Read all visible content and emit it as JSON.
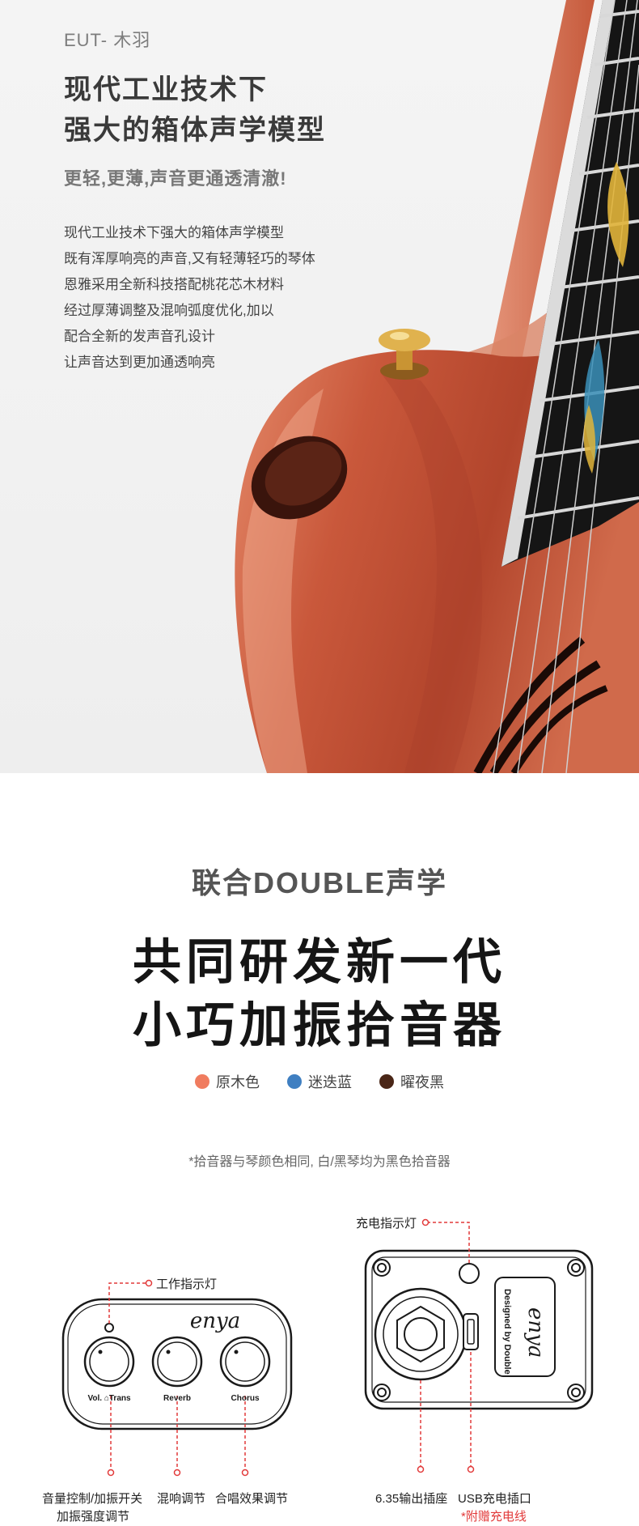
{
  "hero": {
    "model": "EUT- 木羽",
    "headline": [
      "现代工业技术下",
      "强大的箱体声学模型"
    ],
    "subtitle": "更轻,更薄,声音更通透清澈!",
    "body": [
      "现代工业技术下强大的箱体声学模型",
      "既有浑厚响亮的声音,又有轻薄轻巧的琴体",
      "恩雅采用全新科技搭配桃花芯木材料",
      "经过厚薄调整及混响弧度优化,加以",
      "配合全新的发声音孔设计",
      "让声音达到更加通透响亮"
    ]
  },
  "double": {
    "title": "联合DOUBLE声学",
    "big_title": [
      "共同研发新一代",
      "小巧加振拾音器"
    ],
    "colors": [
      {
        "name": "原木色",
        "color": "#f07c5f"
      },
      {
        "name": "迷迭蓝",
        "color": "#3f7fc1"
      },
      {
        "name": "曜夜黑",
        "color": "#4a2617"
      }
    ],
    "note": "*拾音器与琴颜色相同, 白/黑琴均为黑色拾音器"
  },
  "left_panel": {
    "indicator_label": "工作指示灯",
    "logo": "enya",
    "knobs": [
      "Vol. ⌂Trans",
      "Reverb",
      "Chorus"
    ],
    "captions": {
      "vol_line1": "音量控制/加振开关",
      "vol_line2": "加振强度调节",
      "reverb": "混响调节",
      "chorus": "合唱效果调节"
    }
  },
  "right_panel": {
    "charge_label": "充电指示灯",
    "designed": "Designed by Double",
    "logo": "enya",
    "captions": {
      "output": "6.35输出插座",
      "usb": "USB充电插口",
      "gift": "*附赠充电线"
    }
  },
  "colors": {
    "accent_red": "#e23a3a",
    "wood": "#c8573a",
    "fretboard": "#151515"
  }
}
